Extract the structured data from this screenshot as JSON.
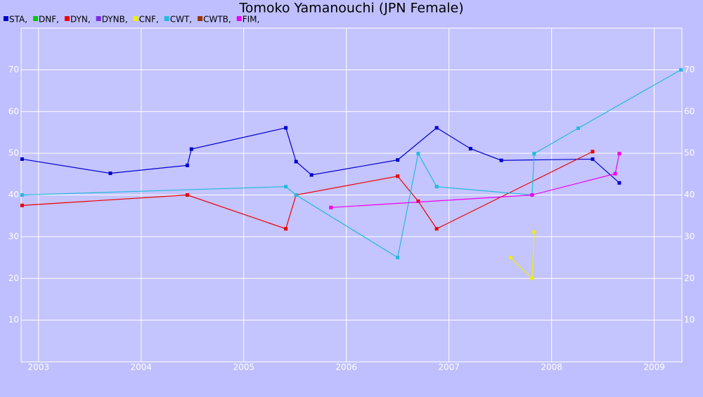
{
  "chart_data": {
    "type": "line",
    "title": "Tomoko Yamanouchi (JPN Female)",
    "xlim": [
      2002.83,
      2009.27
    ],
    "xticks": [
      2003,
      2004,
      2005,
      2006,
      2007,
      2008,
      2009
    ],
    "ylim": [
      0,
      80
    ],
    "yticks": [
      10,
      20,
      30,
      40,
      50,
      60,
      70
    ],
    "grid": true,
    "series": [
      {
        "name": "STA,",
        "color": "#0000cc",
        "x": [
          2002.84,
          2003.7,
          2004.45,
          2004.49,
          2005.41,
          2005.51,
          2005.66,
          2006.5,
          2006.88,
          2007.21,
          2007.51,
          2008.4,
          2008.66
        ],
        "values": [
          48.6,
          45.2,
          47.1,
          51.0,
          56.1,
          48.0,
          44.8,
          48.4,
          56.1,
          51.1,
          48.3,
          48.6,
          42.9
        ]
      },
      {
        "name": "DNF,",
        "color": "#00cc00",
        "x": [],
        "values": []
      },
      {
        "name": "DYN,",
        "color": "#ee0000",
        "x": [
          2002.84,
          2004.45,
          2005.41,
          2005.51,
          2006.5,
          2006.7,
          2006.88,
          2008.4
        ],
        "values": [
          37.5,
          40.0,
          31.9,
          40.0,
          44.5,
          38.5,
          31.9,
          50.4
        ]
      },
      {
        "name": "DYNB,",
        "color": "#7a2be2",
        "x": [],
        "values": []
      },
      {
        "name": "CNF,",
        "color": "#eeee00",
        "x": [
          2007.6,
          2007.81,
          2007.83
        ],
        "values": [
          25.0,
          20.0,
          31.1
        ]
      },
      {
        "name": "CWT,",
        "color": "#22bbdd",
        "x": [
          2002.84,
          2005.41,
          2005.51,
          2006.5,
          2006.7,
          2006.88,
          2007.81,
          2007.83,
          2008.26,
          2009.26
        ],
        "values": [
          40.0,
          42.0,
          40.0,
          25.0,
          49.9,
          42.0,
          40.0,
          49.9,
          56.0,
          70.0
        ]
      },
      {
        "name": "CWTB,",
        "color": "#993300",
        "x": [],
        "values": []
      },
      {
        "name": "FIM,",
        "color": "#ee00ee",
        "x": [
          2005.85,
          2007.81,
          2008.62,
          2008.66
        ],
        "values": [
          37.0,
          40.0,
          45.1,
          49.9
        ]
      }
    ]
  }
}
